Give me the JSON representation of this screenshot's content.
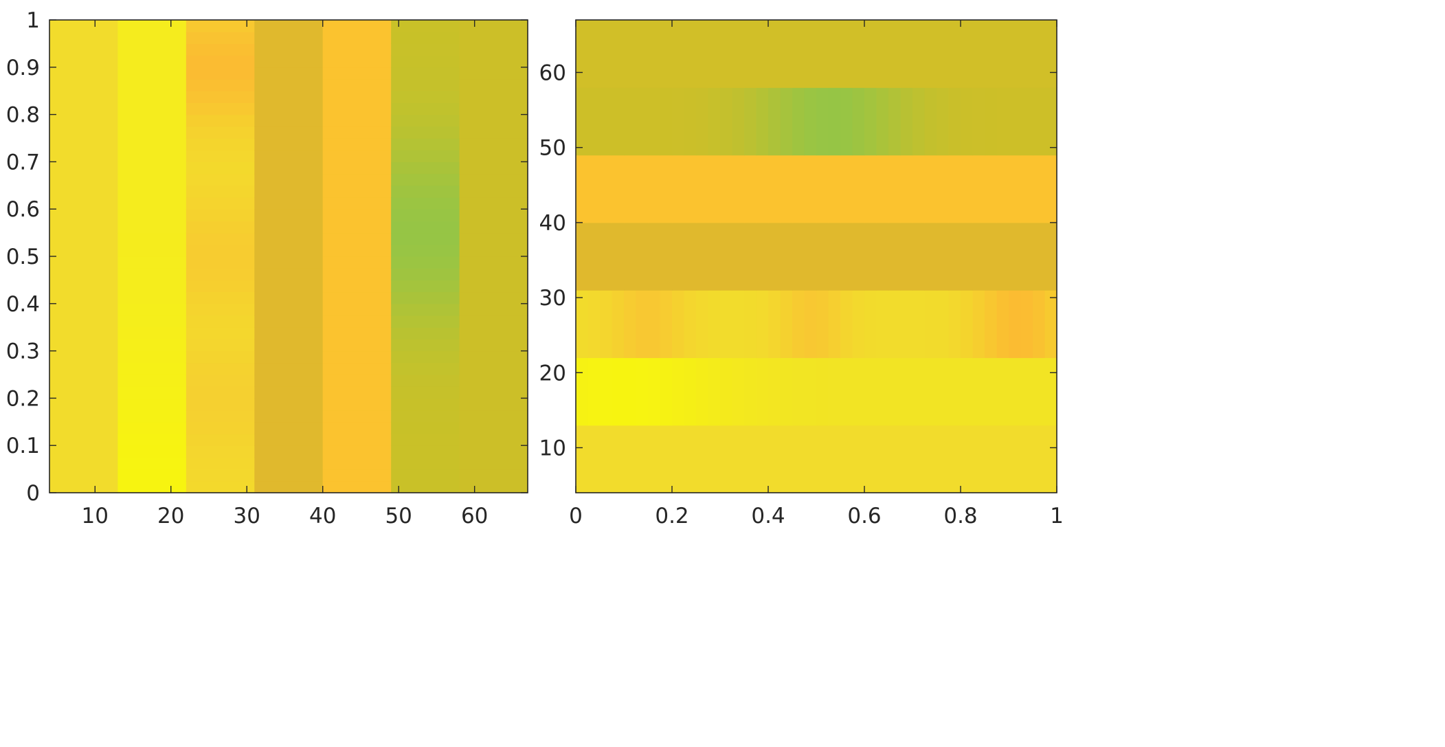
{
  "chart_data": [
    {
      "type": "heatmap",
      "title": "",
      "xlabel": "",
      "ylabel": "",
      "xlim": [
        4,
        67
      ],
      "ylim": [
        0,
        1
      ],
      "x_ticks": [
        10,
        20,
        30,
        40,
        50,
        60
      ],
      "y_ticks": [
        0,
        0.1,
        0.2,
        0.3,
        0.4,
        0.5,
        0.6,
        0.7,
        0.8,
        0.9,
        1
      ],
      "x_tick_labels": [
        "10",
        "20",
        "30",
        "40",
        "50",
        "60"
      ],
      "y_tick_labels": [
        "0",
        "0.1",
        "0.2",
        "0.3",
        "0.4",
        "0.5",
        "0.6",
        "0.7",
        "0.8",
        "0.9",
        "1"
      ],
      "orientation": "vertical",
      "bands": [
        {
          "from": 4,
          "to": 13,
          "base": "#f2dc2c",
          "blends": []
        },
        {
          "from": 13,
          "to": 22,
          "base": "#f5ec1e",
          "blends": [
            {
              "at": 0.0,
              "color": "#f7f410",
              "spread": 0.3
            }
          ]
        },
        {
          "from": 22,
          "to": 31,
          "base": "#f3da2c",
          "blends": [
            {
              "at": 0.9,
              "color": "#fbbc32",
              "spread": 0.12
            },
            {
              "at": 0.5,
              "color": "#f7cc30",
              "spread": 0.12
            },
            {
              "at": 0.2,
              "color": "#f5d030",
              "spread": 0.12
            }
          ]
        },
        {
          "from": 31,
          "to": 40,
          "base": "#e0b92d",
          "blends": []
        },
        {
          "from": 40,
          "to": 49,
          "base": "#fbc32f",
          "blends": []
        },
        {
          "from": 49,
          "to": 58,
          "base": "#c9c128",
          "blends": [
            {
              "at": 0.55,
              "color": "#96c545",
              "spread": 0.2
            }
          ]
        },
        {
          "from": 58,
          "to": 67,
          "base": "#ccbf28",
          "blends": []
        }
      ]
    },
    {
      "type": "heatmap",
      "title": "",
      "xlabel": "",
      "ylabel": "",
      "xlim": [
        0,
        1
      ],
      "ylim": [
        4,
        67
      ],
      "x_ticks": [
        0,
        0.2,
        0.4,
        0.6,
        0.8,
        1
      ],
      "y_ticks": [
        10,
        20,
        30,
        40,
        50,
        60
      ],
      "x_tick_labels": [
        "0",
        "0.2",
        "0.4",
        "0.6",
        "0.8",
        "1"
      ],
      "y_tick_labels": [
        "10",
        "20",
        "30",
        "40",
        "50",
        "60"
      ],
      "orientation": "horizontal",
      "bands": [
        {
          "from": 4,
          "to": 13,
          "base": "#f2dc2c",
          "blends": []
        },
        {
          "from": 13,
          "to": 22,
          "base": "#f2e424",
          "blends": [
            {
              "at": 0.1,
              "color": "#f7f410",
              "spread": 0.22
            }
          ]
        },
        {
          "from": 22,
          "to": 31,
          "base": "#f2dc2c",
          "blends": [
            {
              "at": 0.15,
              "color": "#f8c832",
              "spread": 0.08
            },
            {
              "at": 0.49,
              "color": "#f8c832",
              "spread": 0.07
            },
            {
              "at": 0.92,
              "color": "#fbbc32",
              "spread": 0.09
            }
          ]
        },
        {
          "from": 31,
          "to": 40,
          "base": "#e0b92d",
          "blends": []
        },
        {
          "from": 40,
          "to": 49,
          "base": "#fbc32f",
          "blends": []
        },
        {
          "from": 49,
          "to": 58,
          "base": "#cdbf28",
          "blends": [
            {
              "at": 0.53,
              "color": "#96c545",
              "spread": 0.16
            }
          ]
        },
        {
          "from": 58,
          "to": 67,
          "base": "#d1bf28",
          "blends": []
        }
      ]
    }
  ]
}
